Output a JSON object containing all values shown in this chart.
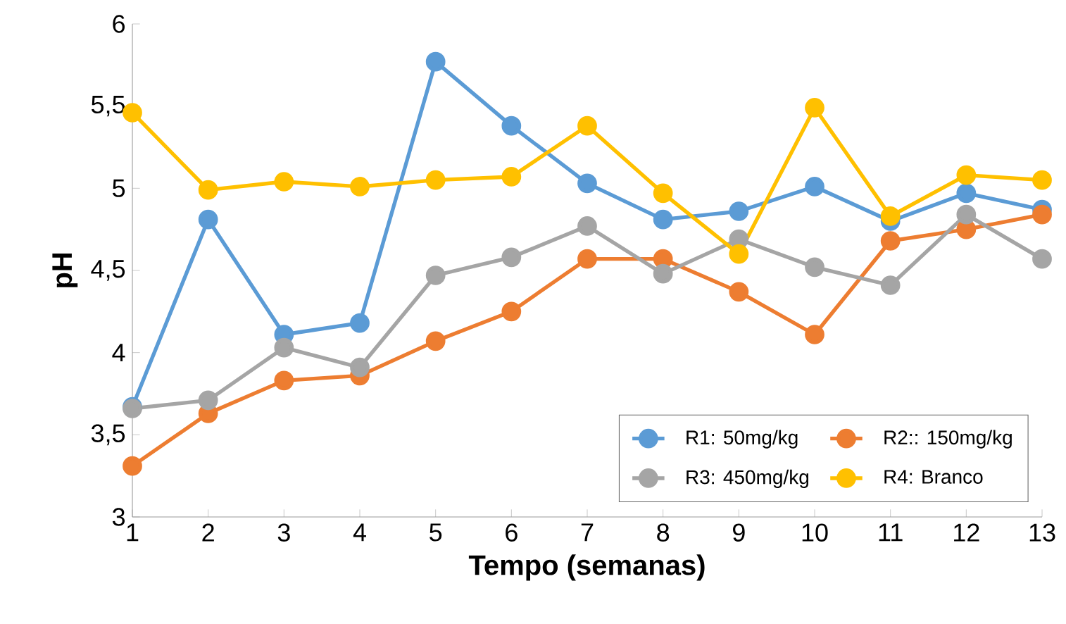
{
  "chart_data": {
    "type": "line",
    "xlabel": "Tempo (semanas)",
    "ylabel": "pH",
    "x": [
      1,
      2,
      3,
      4,
      5,
      6,
      7,
      8,
      9,
      10,
      11,
      12,
      13
    ],
    "series": [
      {
        "name": "R1: 50mg/kg",
        "color": "#5b9bd5",
        "values": [
          3.67,
          4.81,
          4.11,
          4.18,
          5.77,
          5.38,
          5.03,
          4.81,
          4.86,
          5.01,
          4.8,
          4.97,
          4.87
        ]
      },
      {
        "name": "R2:: 150mg/kg",
        "color": "#ed7d31",
        "values": [
          3.31,
          3.63,
          3.83,
          3.86,
          4.07,
          4.25,
          4.57,
          4.57,
          4.37,
          4.11,
          4.68,
          4.75,
          4.84
        ]
      },
      {
        "name": "R3: 450mg/kg",
        "color": "#a5a5a5",
        "values": [
          3.66,
          3.71,
          4.03,
          3.91,
          4.47,
          4.58,
          4.77,
          4.48,
          4.69,
          4.52,
          4.41,
          4.84,
          4.57
        ]
      },
      {
        "name": "R4: Branco",
        "color": "#ffc000",
        "values": [
          5.46,
          4.99,
          5.04,
          5.01,
          5.05,
          5.07,
          5.38,
          4.97,
          4.6,
          5.49,
          4.83,
          5.08,
          5.05
        ]
      }
    ],
    "xlim": [
      1,
      13
    ],
    "xticks": [
      1,
      2,
      3,
      4,
      5,
      6,
      7,
      8,
      9,
      10,
      11,
      12,
      13
    ],
    "ylim": [
      3,
      6
    ],
    "yticks": [
      3,
      {
        "value": 3.5,
        "label": "3,5"
      },
      4,
      {
        "value": 4.5,
        "label": "4,5"
      },
      5,
      {
        "value": 5.5,
        "label": "5,5"
      },
      6
    ],
    "grid": false,
    "legend": "bottom right",
    "marker": "circle",
    "line_style": "solid"
  }
}
